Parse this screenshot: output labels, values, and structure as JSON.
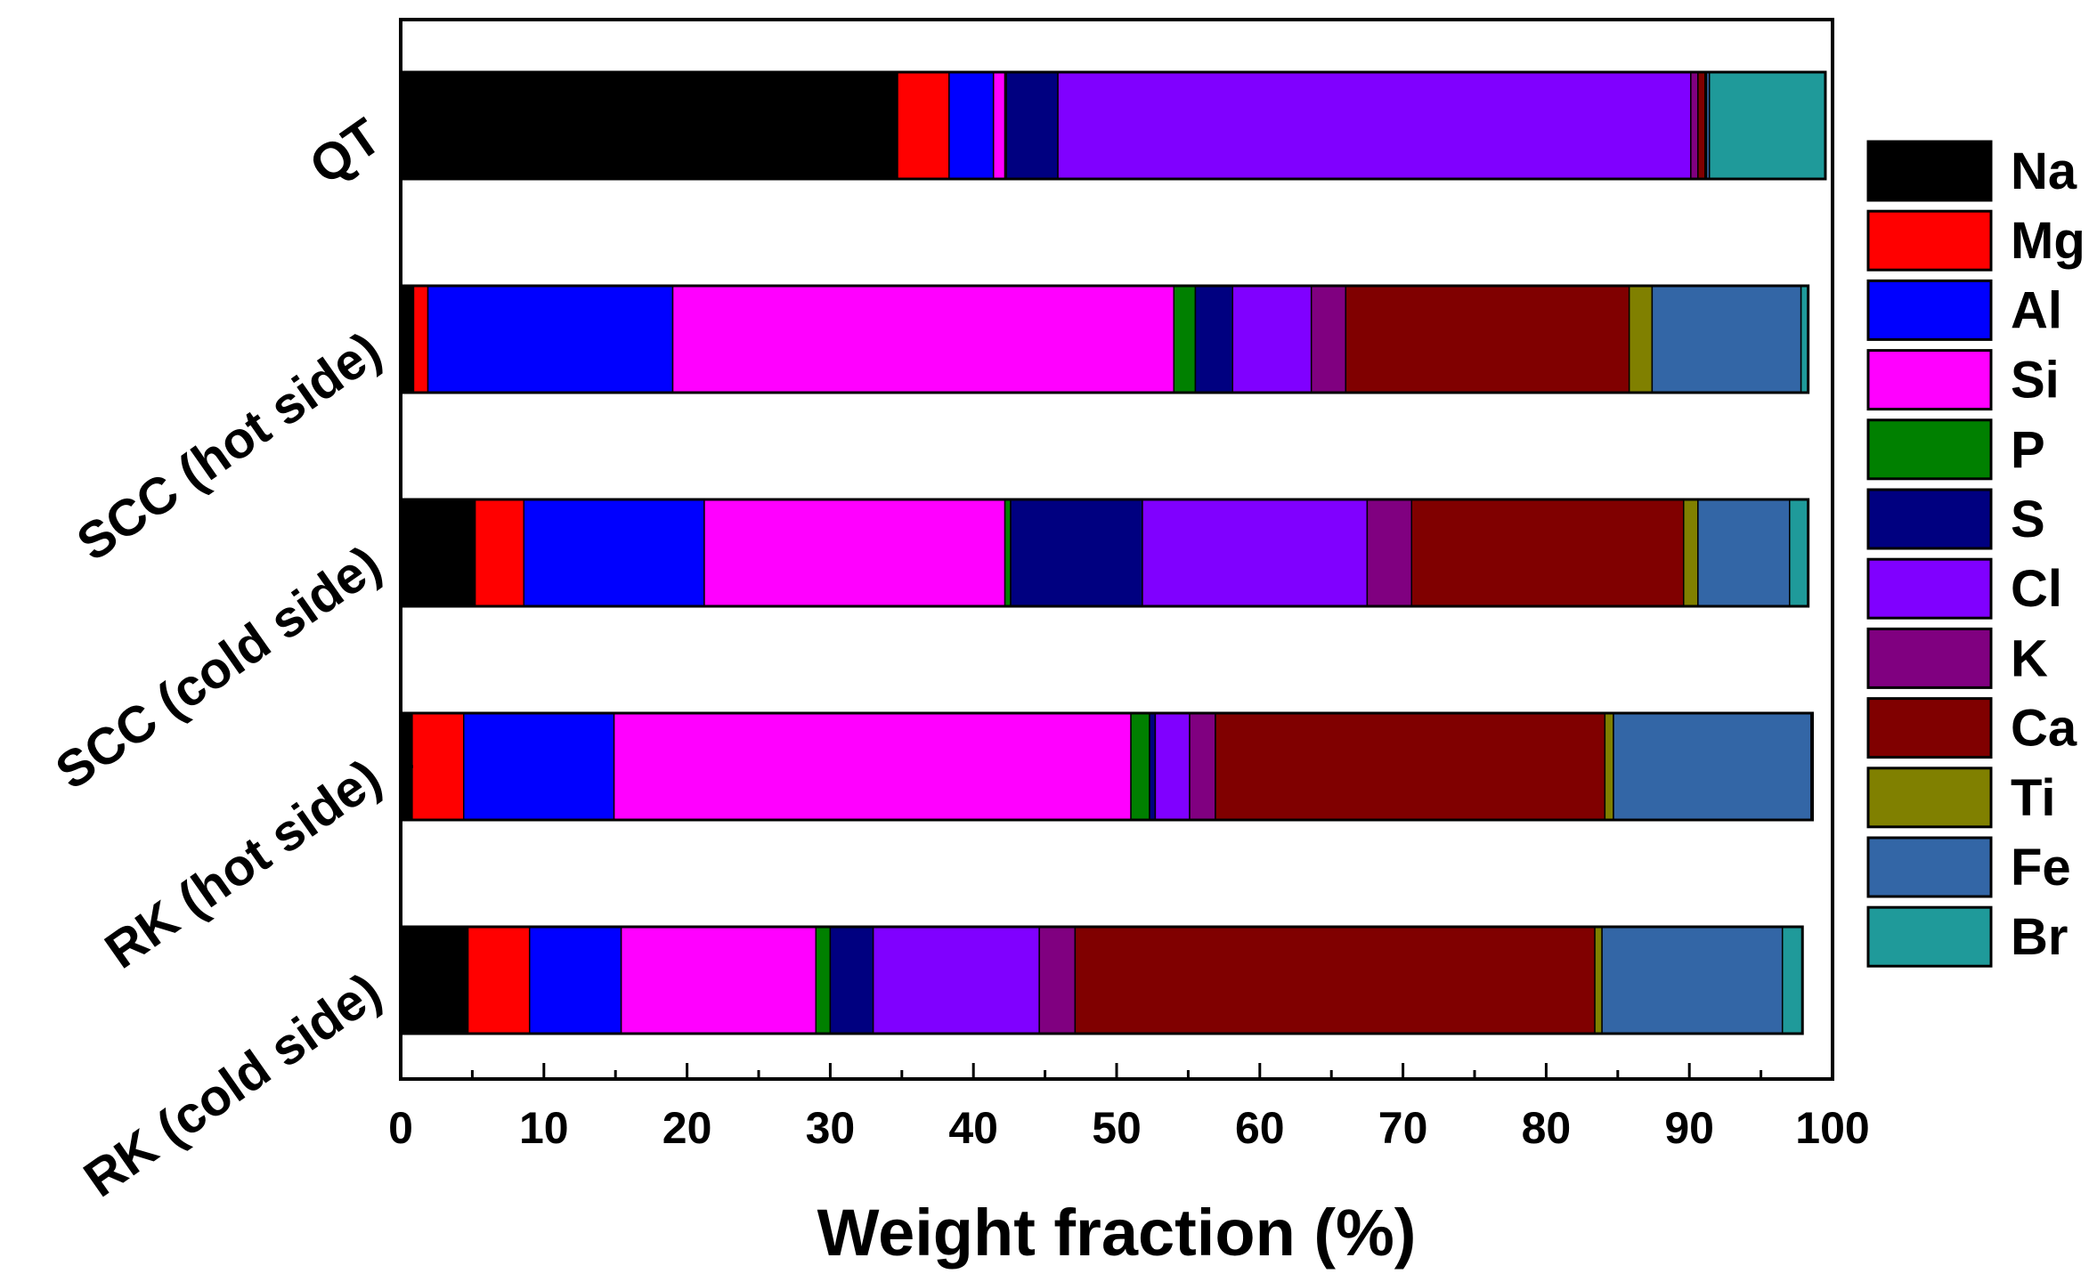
{
  "chart_data": {
    "type": "bar",
    "orientation": "horizontal",
    "stacked": true,
    "title": "",
    "xlabel": "Weight fraction (%)",
    "ylabel": "",
    "xlim": [
      0,
      100
    ],
    "x_ticks": [
      0,
      10,
      20,
      30,
      40,
      50,
      60,
      70,
      80,
      90,
      100
    ],
    "grid": false,
    "legend_position": "right",
    "categories": [
      "QT",
      "SCC (hot side)",
      "SCC (cold side)",
      "RK (hot side)",
      "RK (cold side)"
    ],
    "series": [
      {
        "name": "Na",
        "color": "#000000",
        "values": [
          34.7,
          0.9,
          5.2,
          0.8,
          4.7
        ]
      },
      {
        "name": "Mg",
        "color": "#ff0000",
        "values": [
          3.6,
          1.0,
          3.4,
          3.6,
          4.3
        ]
      },
      {
        "name": "Al",
        "color": "#0000ff",
        "values": [
          3.1,
          17.1,
          12.6,
          10.5,
          6.4
        ]
      },
      {
        "name": "Si",
        "color": "#ff00ff",
        "values": [
          0.8,
          35.0,
          21.0,
          36.1,
          13.6
        ]
      },
      {
        "name": "P",
        "color": "#008000",
        "values": [
          0.1,
          1.5,
          0.4,
          1.3,
          1.0
        ]
      },
      {
        "name": "S",
        "color": "#000080",
        "values": [
          3.6,
          2.6,
          9.2,
          0.4,
          3.0
        ]
      },
      {
        "name": "Cl",
        "color": "#8000ff",
        "values": [
          44.2,
          5.5,
          15.7,
          2.4,
          11.6
        ]
      },
      {
        "name": "K",
        "color": "#800080",
        "values": [
          0.5,
          2.4,
          3.1,
          1.8,
          2.5
        ]
      },
      {
        "name": "Ca",
        "color": "#800000",
        "values": [
          0.5,
          19.8,
          19.0,
          27.2,
          36.3
        ]
      },
      {
        "name": "Ti",
        "color": "#808000",
        "values": [
          0.1,
          1.6,
          1.0,
          0.6,
          0.5
        ]
      },
      {
        "name": "Fe",
        "color": "#3366a6",
        "values": [
          0.2,
          10.4,
          6.4,
          13.8,
          12.6
        ]
      },
      {
        "name": "Br",
        "color": "#1f9a9a",
        "values": [
          8.1,
          0.5,
          1.3,
          0.1,
          1.4
        ]
      }
    ]
  }
}
